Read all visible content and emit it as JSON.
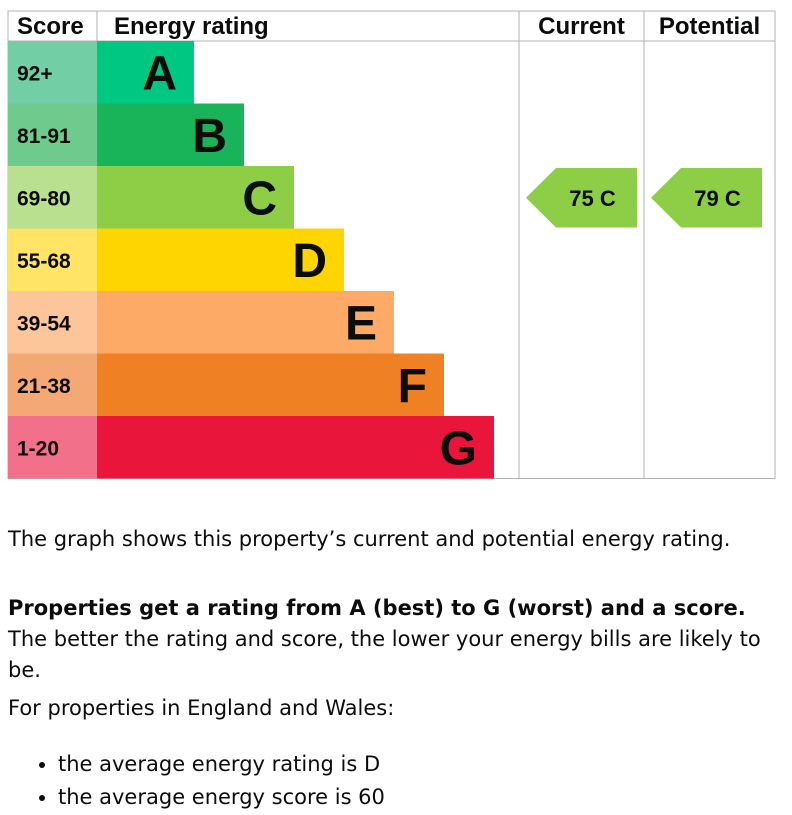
{
  "chart_data": {
    "type": "bar",
    "headers": {
      "score": "Score",
      "rating": "Energy rating",
      "current": "Current",
      "potential": "Potential"
    },
    "bands": [
      {
        "score": "92+",
        "letter": "A",
        "color": "#00c781",
        "score_bg": "#71cea5"
      },
      {
        "score": "81-91",
        "letter": "B",
        "color": "#19b459",
        "score_bg": "#6ecb8d"
      },
      {
        "score": "69-80",
        "letter": "C",
        "color": "#8dce46",
        "score_bg": "#b9e08e"
      },
      {
        "score": "55-68",
        "letter": "D",
        "color": "#ffd500",
        "score_bg": "#ffe466"
      },
      {
        "score": "39-54",
        "letter": "E",
        "color": "#fcaa65",
        "score_bg": "#fdc69a"
      },
      {
        "score": "21-38",
        "letter": "F",
        "color": "#ef8023",
        "score_bg": "#f4a974"
      },
      {
        "score": "1-20",
        "letter": "G",
        "color": "#e9153b",
        "score_bg": "#f2708a"
      }
    ],
    "current": {
      "score": 75,
      "letter": "C",
      "label": "75  C",
      "color": "#8dce46"
    },
    "potential": {
      "score": 79,
      "letter": "C",
      "label": "79  C",
      "color": "#8dce46"
    }
  },
  "text": {
    "para1": "The graph shows this property’s current and potential energy rating.",
    "para2_bold": "Properties get a rating from A (best) to G (worst) and a score.",
    "para2_rest": " The better the rating and score, the lower your energy bills are likely to be.",
    "para3": "For properties in England and Wales:",
    "bullets": [
      "the average energy rating is D",
      "the average energy score is 60"
    ]
  }
}
